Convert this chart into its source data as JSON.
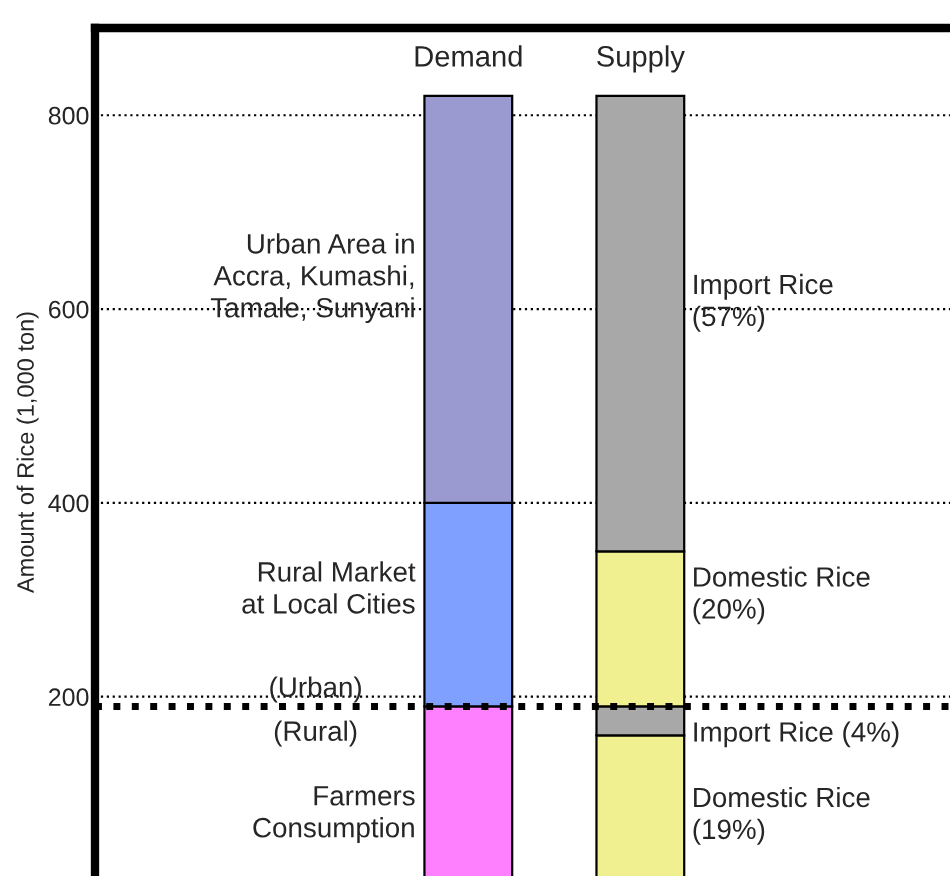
{
  "chart_data": {
    "type": "bar",
    "stacked": true,
    "categories": [
      "Demand",
      "Supply"
    ],
    "ylabel": "Amount of Rice (1,000 ton)",
    "series": [
      {
        "colors": [
          "#ff80ff",
          "#f0f090"
        ],
        "values": [
          190,
          160
        ]
      },
      {
        "colors": [
          "#80a0ff",
          "#a8a8a8"
        ],
        "values": [
          210,
          30
        ]
      },
      {
        "colors": [
          "#9a9ad0",
          "#f0f090"
        ],
        "values": [
          420,
          160
        ]
      },
      {
        "colors": [
          "#a8a8a8",
          "#a8a8a8"
        ],
        "values": [
          null,
          470
        ]
      }
    ],
    "ylim": [
      15,
      890
    ],
    "yticks": [
      200,
      400,
      600,
      800
    ],
    "grid": "y",
    "ref_lines": [
      {
        "axis": "y",
        "value": 190,
        "color": "#000000",
        "line_style": "dotted"
      }
    ],
    "annotations": [
      "Urban Area in\nAccra, Kumashi,\nTamale, Sunyani",
      "Rural Market\nat Local Cities",
      "(Urban)",
      "(Rural)",
      "Farmers\nConsumption",
      "Import Rice\n(57%)",
      "Domestic Rice\n(20%)",
      "Import Rice (4%)",
      "Domestic Rice\n(19%)"
    ]
  }
}
